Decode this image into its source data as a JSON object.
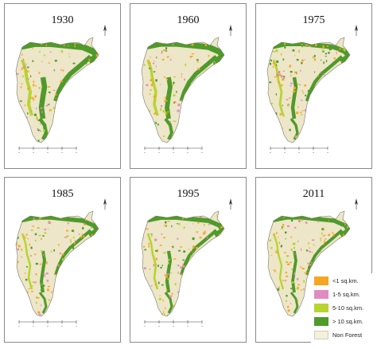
{
  "panels": [
    {
      "year": "1930",
      "forest_level": 1.0
    },
    {
      "year": "1960",
      "forest_level": 0.85
    },
    {
      "year": "1975",
      "forest_level": 0.6
    },
    {
      "year": "1985",
      "forest_level": 0.5
    },
    {
      "year": "1995",
      "forest_level": 0.55
    },
    {
      "year": "2011",
      "forest_level": 0.45
    }
  ],
  "legend": {
    "items": [
      {
        "label": "<1 sq.km.",
        "color": "#f5a623"
      },
      {
        "label": "1-5 sq.km.",
        "color": "#e08cc0"
      },
      {
        "label": "5-10 sq.km.",
        "color": "#b8d430"
      },
      {
        "label": "> 10 sq.km.",
        "color": "#4f9a2a"
      },
      {
        "label": "Non Forest",
        "color": "#f5f0d8"
      }
    ]
  },
  "colors": {
    "non_forest": "#ede6c8",
    "outline": "#7a7a6a",
    "large_forest": "#4f9a2a",
    "mid_forest": "#b8d430",
    "small_forest": "#f5a623",
    "pink_forest": "#e08cc0"
  }
}
